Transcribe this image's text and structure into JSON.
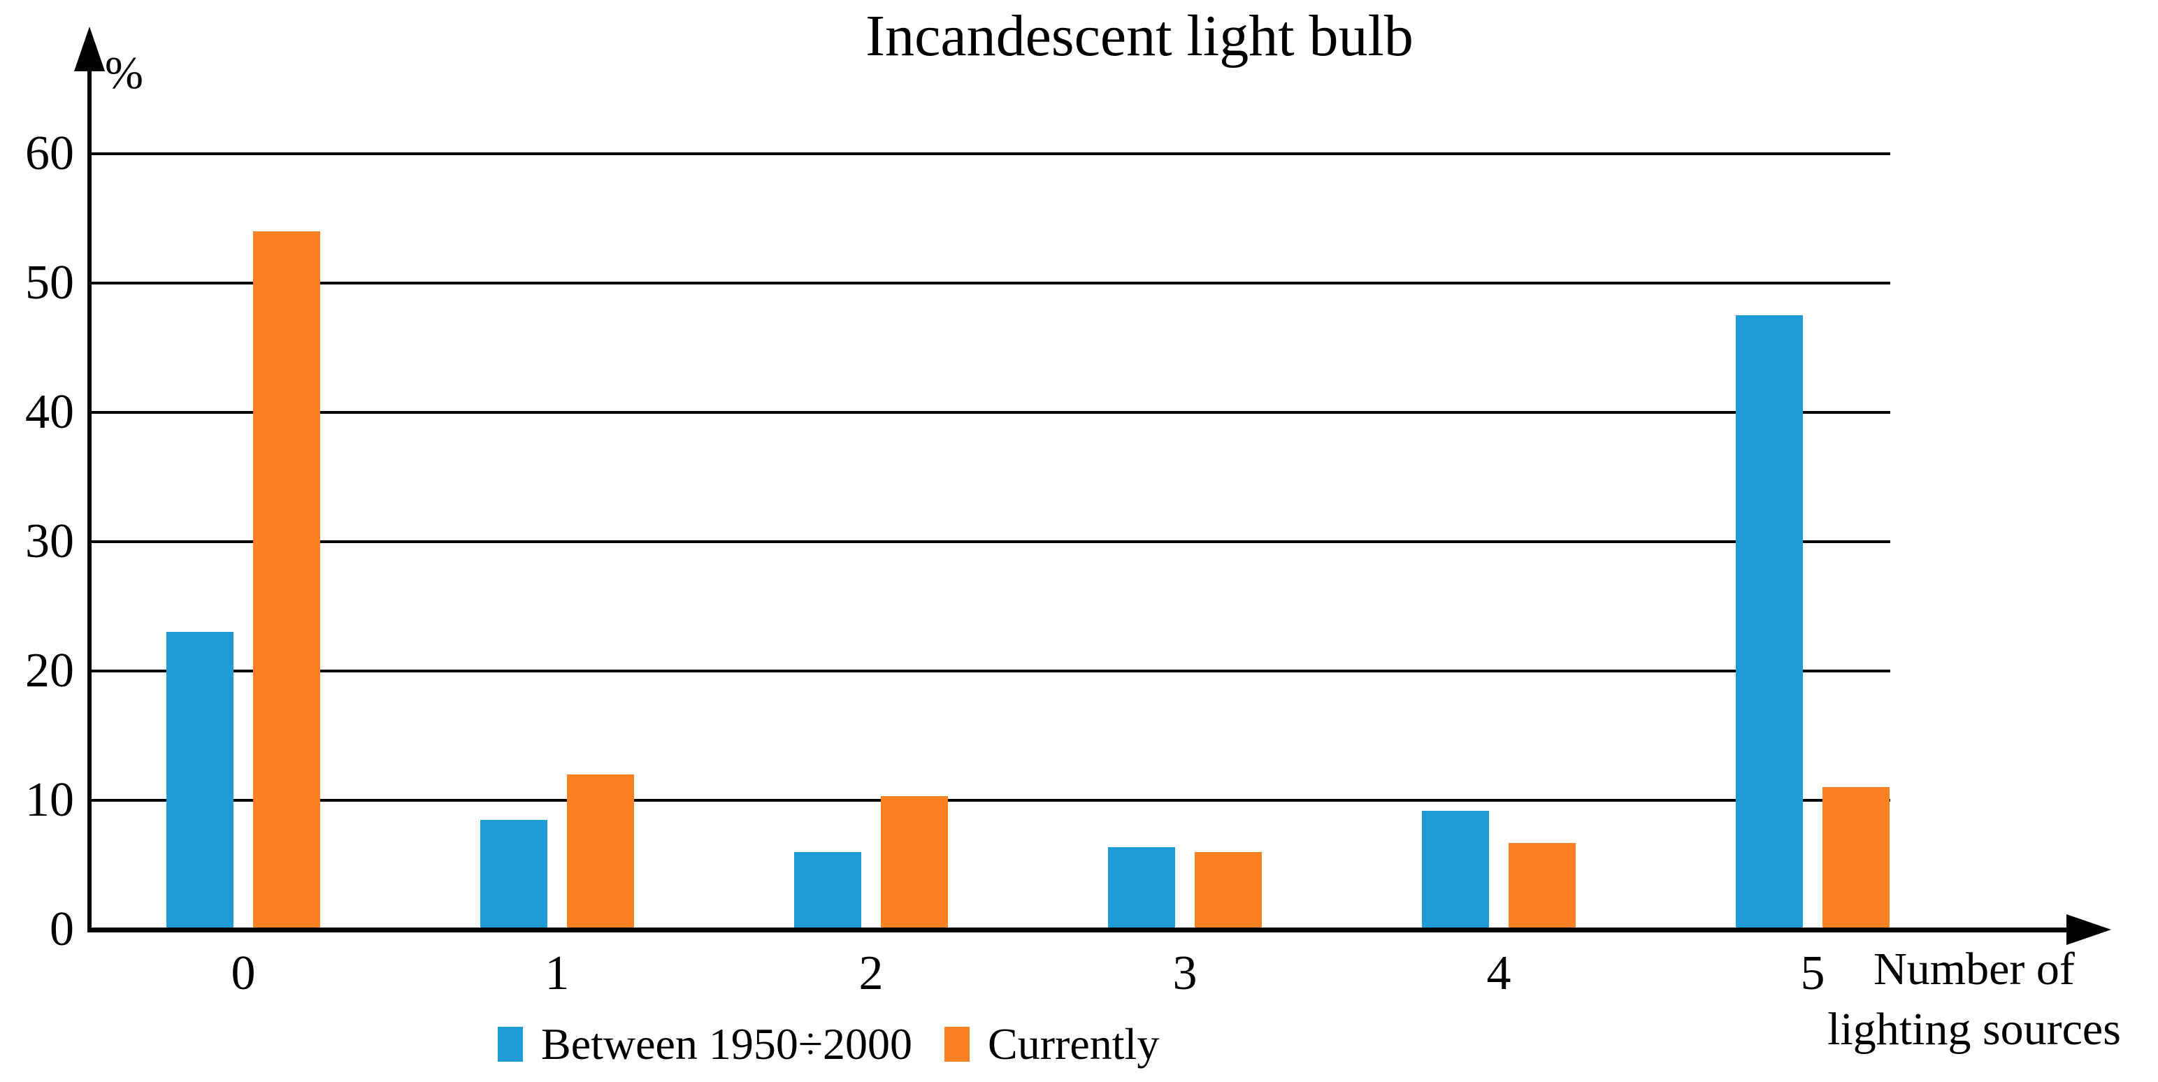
{
  "chart_data": {
    "type": "bar",
    "title": "Incandescent light bulb",
    "ylabel": "%",
    "xlabel_line1": "Number of",
    "xlabel_line2": "lighting sources",
    "categories": [
      "0",
      "1",
      "2",
      "3",
      "4",
      "5"
    ],
    "series": [
      {
        "name": "Between 1950÷2000",
        "color": "#1F9BD8",
        "values": [
          23,
          8.5,
          6,
          6.4,
          9.2,
          47.5
        ]
      },
      {
        "name": "Currently",
        "color": "#FB8122",
        "values": [
          54,
          12,
          10.3,
          6,
          6.7,
          11
        ]
      }
    ],
    "yticks": [
      0,
      10,
      20,
      30,
      40,
      50,
      60
    ],
    "ylim": [
      0,
      65
    ],
    "grid": true,
    "gridcolor": "#000000",
    "legend_position": "bottom"
  }
}
